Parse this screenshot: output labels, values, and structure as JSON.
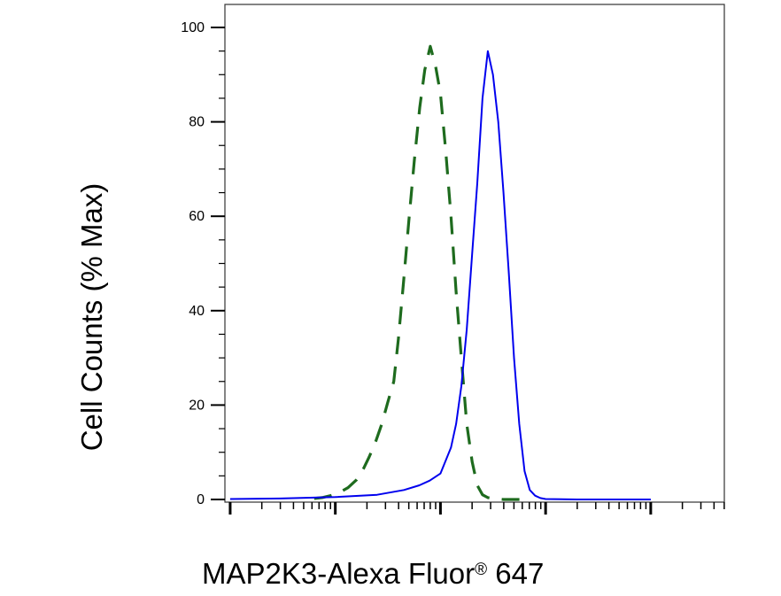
{
  "chart_data": {
    "type": "line",
    "xlabel": "MAP2K3-Alexa Fluor",
    "xlabel_mark": "®",
    "xlabel_suffix": " 647",
    "ylabel": "Cell Counts (% Max)",
    "x_scale": "log",
    "ylim": [
      0,
      100
    ],
    "yticks": [
      0,
      20,
      40,
      60,
      80,
      100
    ],
    "grid": false,
    "series": [
      {
        "style": "dashed",
        "color": "#1e6b1e",
        "x": [
          6.3,
          7.5,
          9,
          11,
          13.2,
          16,
          18.5,
          21,
          24,
          27.7,
          31.5,
          36,
          39.8,
          44.5,
          50,
          56.5,
          63.5,
          71,
          80,
          89.5,
          100,
          112,
          126,
          141,
          158,
          178,
          200,
          224,
          251,
          282,
          316,
          355,
          398,
          447,
          501,
          562,
          631
        ],
        "y": [
          0.2,
          0.4,
          0.8,
          1.5,
          2.5,
          4.2,
          6.5,
          9,
          12,
          16,
          20.5,
          25,
          34,
          46,
          59,
          72,
          83,
          91,
          96,
          92,
          86,
          74,
          60,
          44,
          30,
          16,
          8,
          3,
          1,
          0.4,
          0.2,
          0.1,
          0,
          0,
          0,
          0,
          0
        ]
      },
      {
        "style": "solid",
        "color": "#0000ee",
        "x": [
          1,
          3,
          10,
          25,
          45,
          63,
          79,
          100,
          126,
          141,
          158,
          178,
          200,
          224,
          251,
          282,
          316,
          355,
          398,
          447,
          501,
          562,
          631,
          708,
          794,
          891,
          1000,
          2000,
          5000,
          10000
        ],
        "y": [
          0.1,
          0.2,
          0.5,
          1,
          2,
          3,
          4,
          5.5,
          11,
          16,
          24,
          36,
          52,
          67,
          85,
          95,
          90,
          80,
          65,
          48,
          30,
          16,
          6,
          2,
          0.8,
          0.3,
          0.1,
          0,
          0,
          0
        ]
      }
    ]
  }
}
